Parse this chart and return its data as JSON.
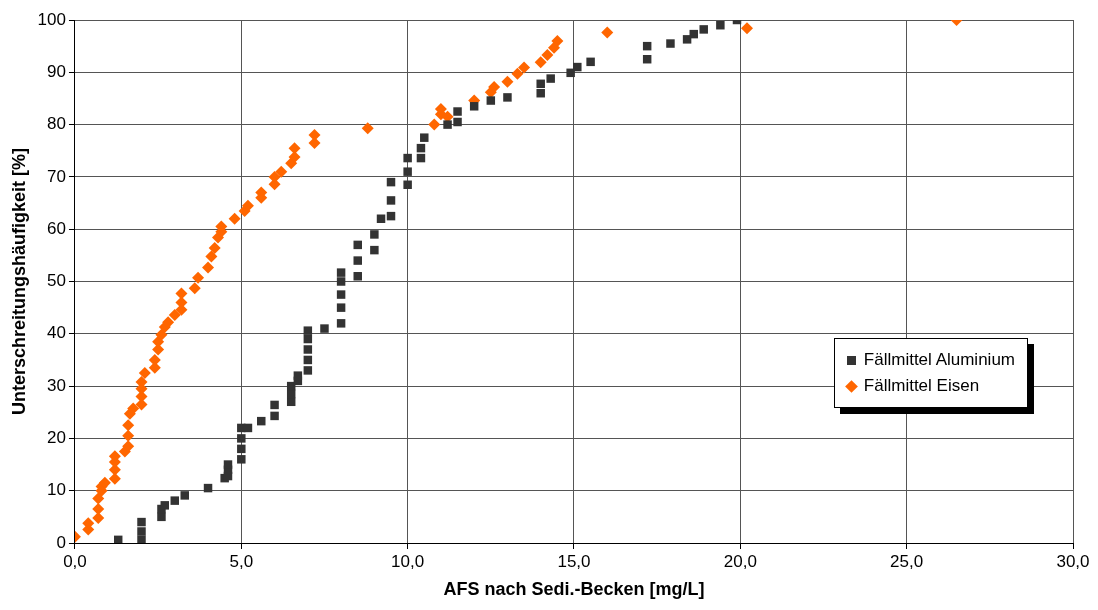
{
  "chart_data": {
    "type": "scatter",
    "xlabel": "AFS nach Sedi.-Becken [mg/L]",
    "ylabel": "Unterschreitungshäufigkeit [%]",
    "xlim": [
      0,
      30
    ],
    "xticks": [
      {
        "value": 0,
        "label": "0,0"
      },
      {
        "value": 5,
        "label": "5,0"
      },
      {
        "value": 10,
        "label": "10,0"
      },
      {
        "value": 15,
        "label": "15,0"
      },
      {
        "value": 20,
        "label": "20,0"
      },
      {
        "value": 25,
        "label": "25,0"
      },
      {
        "value": 30,
        "label": "30,0"
      }
    ],
    "ylim": [
      0,
      100
    ],
    "yticks": [
      0,
      10,
      20,
      30,
      40,
      50,
      60,
      70,
      80,
      90,
      100
    ],
    "grid": true,
    "legend": "bottom right",
    "series": [
      {
        "name": "Fällmittel Aluminium",
        "color": "#333333",
        "marker": "square",
        "x": [
          1.3,
          2.0,
          2.0,
          2.0,
          2.6,
          2.6,
          2.7,
          3.0,
          3.3,
          4.0,
          4.5,
          4.6,
          4.6,
          4.6,
          5.0,
          5.0,
          5.0,
          5.0,
          5.2,
          5.6,
          6.0,
          6.0,
          6.5,
          6.5,
          6.5,
          6.7,
          6.7,
          7.0,
          7.0,
          7.0,
          7.0,
          7.0,
          7.5,
          8.0,
          8.0,
          8.0,
          8.0,
          8.0,
          8.5,
          8.5,
          8.5,
          9.0,
          9.0,
          9.2,
          9.5,
          9.5,
          9.5,
          10.0,
          10.0,
          10.0,
          10.4,
          10.4,
          10.5,
          11.2,
          11.5,
          11.5,
          12.0,
          12.5,
          13.0,
          14.0,
          14.0,
          14.3,
          14.9,
          15.1,
          15.5,
          17.2,
          17.2,
          17.9,
          18.4,
          18.6,
          18.9,
          19.4,
          19.9
        ],
        "values": [
          0.6,
          0.6,
          2.2,
          4.0,
          5.0,
          6.5,
          7.2,
          8.1,
          9.1,
          10.5,
          12.4,
          12.8,
          14.0,
          15.0,
          16.0,
          18.0,
          20.0,
          22.0,
          22.0,
          23.3,
          24.3,
          26.4,
          27.0,
          28.5,
          30.0,
          31.0,
          32.0,
          33.0,
          35.0,
          37.0,
          39.0,
          40.6,
          41.0,
          42.0,
          45.0,
          47.5,
          50.0,
          51.7,
          51.0,
          54.0,
          57.0,
          56.0,
          59.0,
          62.0,
          62.5,
          65.5,
          69.0,
          68.5,
          71.0,
          73.6,
          73.6,
          75.5,
          77.5,
          80.0,
          80.5,
          82.5,
          83.5,
          84.6,
          85.2,
          86.0,
          87.8,
          88.8,
          89.9,
          91.0,
          92.0,
          92.5,
          95.0,
          95.5,
          96.3,
          97.3,
          98.2,
          99.0,
          100.0
        ]
      },
      {
        "name": "Fällmittel Eisen",
        "color": "#ff6600",
        "marker": "diamond",
        "x": [
          0.0,
          0.4,
          0.4,
          0.7,
          0.7,
          0.7,
          0.8,
          0.8,
          0.9,
          1.2,
          1.2,
          1.2,
          1.2,
          1.5,
          1.6,
          1.6,
          1.6,
          1.65,
          1.75,
          2.0,
          2.0,
          2.0,
          2.0,
          2.1,
          2.4,
          2.4,
          2.5,
          2.5,
          2.6,
          2.7,
          2.8,
          3.0,
          3.2,
          3.2,
          3.2,
          3.6,
          3.7,
          4.0,
          4.1,
          4.2,
          4.3,
          4.4,
          4.4,
          4.8,
          5.1,
          5.2,
          5.6,
          5.6,
          6.0,
          6.0,
          6.2,
          6.5,
          6.6,
          6.6,
          7.2,
          7.2,
          8.8,
          10.8,
          11.0,
          11.0,
          11.2,
          12.0,
          12.5,
          12.6,
          13.0,
          13.3,
          13.5,
          14.0,
          14.2,
          14.4,
          14.5,
          16.0,
          20.2,
          26.5
        ],
        "values": [
          1.2,
          2.6,
          3.8,
          4.8,
          6.5,
          8.5,
          10.0,
          10.8,
          11.5,
          12.3,
          14.0,
          15.5,
          16.6,
          17.5,
          18.5,
          20.5,
          22.5,
          24.7,
          25.7,
          26.5,
          28.0,
          29.5,
          30.8,
          32.5,
          33.5,
          35.0,
          37.0,
          38.5,
          39.8,
          41.3,
          42.2,
          43.6,
          44.6,
          46.0,
          47.7,
          48.7,
          50.7,
          52.7,
          54.8,
          56.4,
          58.4,
          59.5,
          60.5,
          62.0,
          63.5,
          64.5,
          66.0,
          67.0,
          68.6,
          70.0,
          71.0,
          72.6,
          73.8,
          75.5,
          76.5,
          78.0,
          79.3,
          80.0,
          82.0,
          83.0,
          81.5,
          84.6,
          86.2,
          87.2,
          88.2,
          89.7,
          90.9,
          91.9,
          93.3,
          94.7,
          96.0,
          97.6,
          98.4,
          100.0
        ]
      }
    ]
  }
}
